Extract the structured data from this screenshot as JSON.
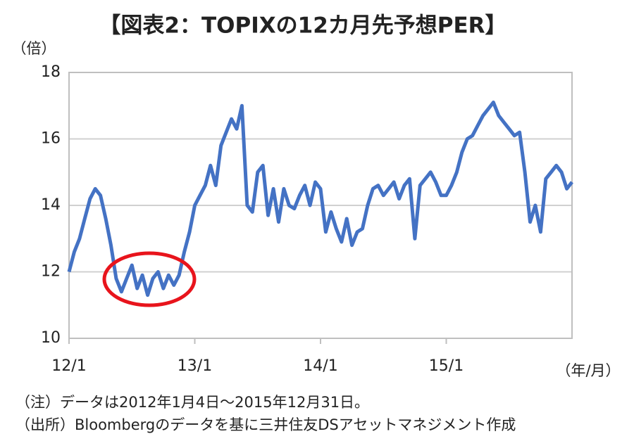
{
  "chart_data": {
    "type": "line",
    "title": "【図表2：TOPIXの12カ月先予想PER】",
    "y_label": "（倍）",
    "x_label": "（年/月）",
    "notes": [
      "（注）データは2012年1月4日～2015年12月31日。",
      "（出所）Bloombergのデータを基に三井住友DSアセットマネジメント作成"
    ],
    "x": [
      0,
      0.5,
      1,
      1.5,
      2,
      2.5,
      3,
      3.5,
      4,
      4.5,
      5,
      5.5,
      6,
      6.5,
      7,
      7.5,
      8,
      8.5,
      9,
      9.5,
      10,
      10.5,
      11,
      11.5,
      12,
      12.5,
      13,
      13.5,
      14,
      14.5,
      15,
      15.5,
      16,
      16.5,
      17,
      17.5,
      18,
      18.5,
      19,
      19.5,
      20,
      20.5,
      21,
      21.5,
      22,
      22.5,
      23,
      23.5,
      24,
      24.5,
      25,
      25.5,
      26,
      26.5,
      27,
      27.5,
      28,
      28.5,
      29,
      29.5,
      30,
      30.5,
      31,
      31.5,
      32,
      32.5,
      33,
      33.5,
      34,
      34.5,
      35,
      35.5,
      36,
      36.5,
      37,
      37.5,
      38,
      38.5,
      39,
      39.5,
      40,
      40.5,
      41,
      41.5,
      42,
      42.5,
      43,
      43.5,
      44,
      44.5,
      45,
      45.5,
      46,
      46.5,
      47,
      47.5,
      48
    ],
    "series": [
      {
        "name": "TOPIX",
        "color": "#4472c4",
        "values": [
          12.0,
          12.6,
          13.0,
          13.6,
          14.2,
          14.5,
          14.3,
          13.6,
          12.8,
          11.8,
          11.4,
          11.8,
          12.2,
          11.5,
          11.9,
          11.3,
          11.8,
          12.0,
          11.5,
          11.9,
          11.6,
          11.9,
          12.6,
          13.2,
          14.0,
          14.3,
          14.6,
          15.2,
          14.6,
          15.8,
          16.2,
          16.6,
          16.3,
          17.0,
          14.0,
          13.8,
          15.0,
          15.2,
          13.7,
          14.5,
          13.5,
          14.5,
          14.0,
          13.9,
          14.3,
          14.6,
          14.0,
          14.7,
          14.5,
          13.2,
          13.8,
          13.3,
          12.9,
          13.6,
          12.8,
          13.2,
          13.3,
          14.0,
          14.5,
          14.6,
          14.3,
          14.5,
          14.7,
          14.2,
          14.6,
          14.8,
          13.0,
          14.6,
          14.8,
          15.0,
          14.7,
          14.3,
          14.3,
          14.6,
          15.0,
          15.6,
          16.0,
          16.1,
          16.4,
          16.7,
          16.9,
          17.1,
          16.7,
          16.5,
          16.3,
          16.1,
          16.2,
          15.0,
          13.5,
          14.0,
          13.2,
          14.8,
          15.0,
          15.2,
          15.0,
          14.5,
          14.7
        ]
      }
    ],
    "xlim": [
      0,
      48
    ],
    "xticks": [
      {
        "value": 0,
        "label": "12/1"
      },
      {
        "value": 12,
        "label": "13/1"
      },
      {
        "value": 24,
        "label": "14/1"
      },
      {
        "value": 36,
        "label": "15/1"
      }
    ],
    "ylim": [
      10,
      18
    ],
    "yticks": [
      10,
      12,
      14,
      16,
      18
    ],
    "grid": true
  }
}
